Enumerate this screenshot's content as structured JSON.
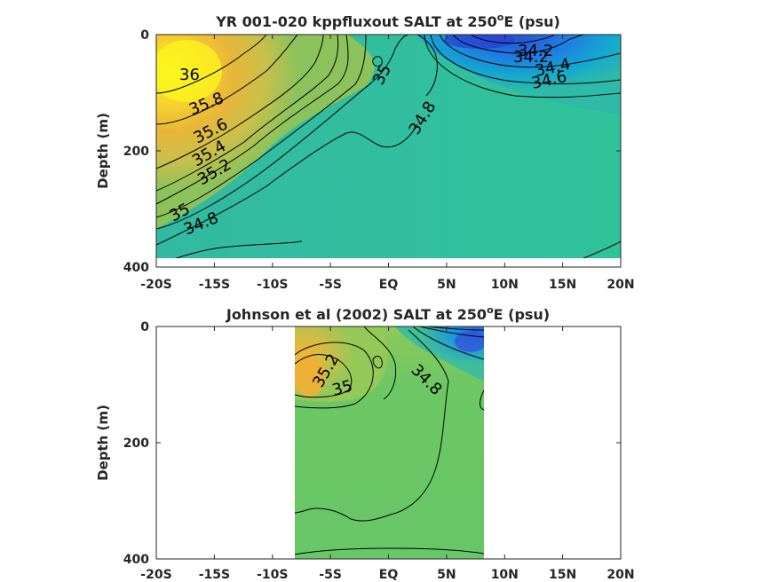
{
  "chart_data": [
    {
      "type": "heatmap",
      "title": "YR 001-020 kppfluxout SALT at 250",
      "title_superscript": "o",
      "title_suffix": "E (psu)",
      "ylabel": "Depth (m)",
      "xlabel": "",
      "x_ticks": [
        "-20S",
        "-15S",
        "-10S",
        "-5S",
        "EQ",
        "5N",
        "10N",
        "15N",
        "20N"
      ],
      "x_tick_values": [
        -20,
        -15,
        -10,
        -5,
        0,
        5,
        10,
        15,
        20
      ],
      "xlim": [
        -20,
        20
      ],
      "y_ticks": [
        "0",
        "200",
        "400"
      ],
      "y_tick_values": [
        0,
        200,
        400
      ],
      "ylim": [
        400,
        0
      ],
      "data_extent": {
        "lon": [
          -20,
          20
        ],
        "depth": [
          0,
          385
        ]
      },
      "colormap": "parula",
      "contour_labels": [
        {
          "text": "36",
          "lon": -17.0,
          "depth": 35
        },
        {
          "text": "35.8",
          "lon": -15.0,
          "depth": 62
        },
        {
          "text": "35.6",
          "lon": -14.5,
          "depth": 85
        },
        {
          "text": "35.4",
          "lon": -15.0,
          "depth": 103
        },
        {
          "text": "35.2",
          "lon": -14.5,
          "depth": 122
        },
        {
          "text": "35",
          "lon": -18.0,
          "depth": 153
        },
        {
          "text": "34.8",
          "lon": -16.0,
          "depth": 178
        },
        {
          "text": "35",
          "lon": 0.5,
          "depth": 45
        },
        {
          "text": "34.8",
          "lon": 3.5,
          "depth": 112
        },
        {
          "text": "34.2",
          "lon": 12.0,
          "depth": 14
        },
        {
          "text": "34.2",
          "lon": 11.5,
          "depth": 27
        },
        {
          "text": "34.4",
          "lon": 14.5,
          "depth": 45
        },
        {
          "text": "34.6",
          "lon": 14.0,
          "depth": 60
        }
      ]
    },
    {
      "type": "heatmap",
      "title": "Johnson et al (2002) SALT at 250",
      "title_superscript": "o",
      "title_suffix": "E (psu)",
      "ylabel": "Depth (m)",
      "xlabel": "",
      "x_ticks": [
        "-20S",
        "-15S",
        "-10S",
        "-5S",
        "EQ",
        "5N",
        "10N",
        "15N",
        "20N"
      ],
      "x_tick_values": [
        -20,
        -15,
        -10,
        -5,
        0,
        5,
        10,
        15,
        20
      ],
      "xlim": [
        -20,
        20
      ],
      "y_ticks": [
        "0",
        "200",
        "400"
      ],
      "y_tick_values": [
        0,
        200,
        400
      ],
      "ylim": [
        400,
        0
      ],
      "data_extent": {
        "lon": [
          -8,
          8.25
        ],
        "depth": [
          0,
          400
        ]
      },
      "colormap": "parula",
      "contour_labels": [
        {
          "text": "35.2",
          "lon": -5.0,
          "depth": 80
        },
        {
          "text": "35",
          "lon": -3.6,
          "depth": 101
        },
        {
          "text": "34.8",
          "lon": 3.5,
          "depth": 83
        }
      ]
    }
  ]
}
